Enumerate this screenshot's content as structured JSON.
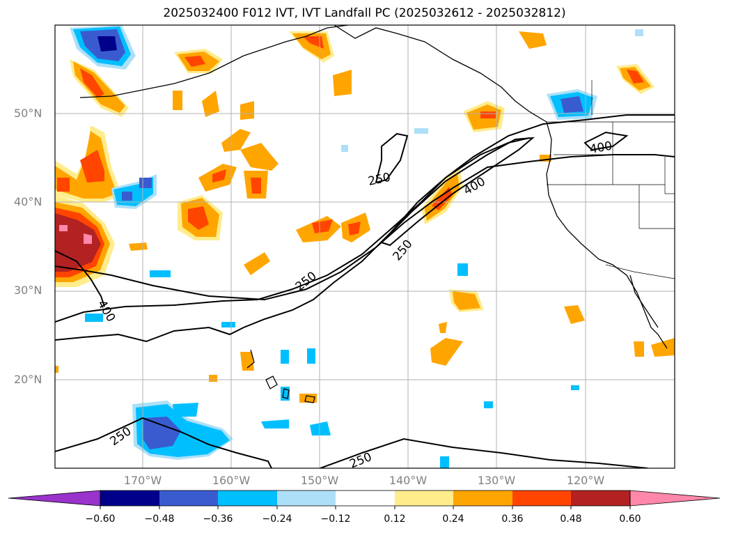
{
  "title": "2025032400 F012 IVT, IVT Landfall PC (2025032612 - 2025032812)",
  "map": {
    "lat_labels": [
      "50°N",
      "40°N",
      "30°N",
      "20°N"
    ],
    "lon_labels": [
      "170°W",
      "160°W",
      "150°W",
      "140°W",
      "130°W",
      "120°W"
    ],
    "contour_labels": [
      "250",
      "250",
      "250",
      "250",
      "250",
      "400",
      "400",
      "400"
    ]
  },
  "colorbar": {
    "ticks": [
      "−0.60",
      "−0.48",
      "−0.36",
      "−0.24",
      "−0.12",
      "0.12",
      "0.24",
      "0.36",
      "0.48",
      "0.60"
    ],
    "colors": [
      "#9933cc",
      "#00008b",
      "#3a5bd0",
      "#00bfff",
      "#ade0f8",
      "#ffffff",
      "#ffec8b",
      "#ffa500",
      "#ff4500",
      "#b22222",
      "#ff88aa"
    ]
  }
}
